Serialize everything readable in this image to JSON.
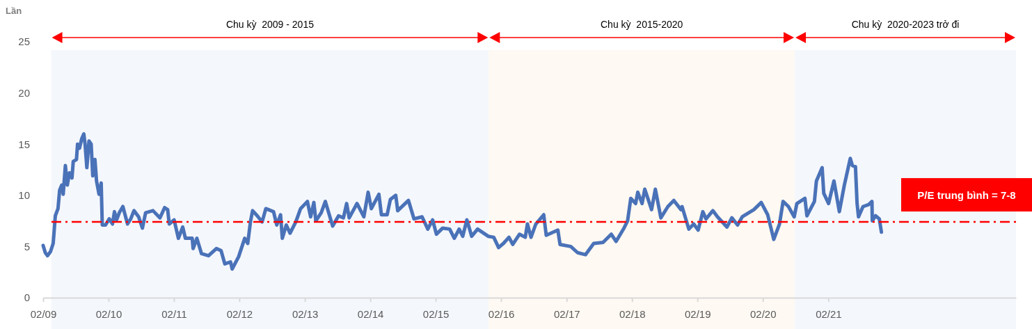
{
  "chart_data": {
    "type": "line",
    "ylabel": "Lần",
    "x": [
      "2009-02-01",
      "2009-02-13",
      "2009-02-25",
      "2009-03-14",
      "2009-03-29",
      "2009-04-10",
      "2009-04-25",
      "2009-05-04",
      "2009-05-16",
      "2009-05-24",
      "2009-06-05",
      "2009-06-16",
      "2009-06-28",
      "2009-07-12",
      "2009-07-19",
      "2009-08-06",
      "2009-08-12",
      "2009-08-23",
      "2009-09-04",
      "2009-09-16",
      "2009-09-23",
      "2009-10-03",
      "2009-10-15",
      "2009-10-27",
      "2009-11-05",
      "2009-11-17",
      "2009-11-26",
      "2009-12-10",
      "2009-12-22",
      "2009-12-28",
      "2010-01-15",
      "2010-02-05",
      "2010-02-23",
      "2010-03-06",
      "2010-03-18",
      "2010-04-02",
      "2010-04-22",
      "2010-05-18",
      "2010-06-05",
      "2010-06-23",
      "2010-07-19",
      "2010-08-09",
      "2010-08-27",
      "2010-10-07",
      "2010-11-15",
      "2010-12-11",
      "2010-12-28",
      "2011-01-06",
      "2011-02-02",
      "2011-02-26",
      "2011-03-22",
      "2011-04-06",
      "2011-05-14",
      "2011-05-19",
      "2011-06-09",
      "2011-07-05",
      "2011-08-13",
      "2011-09-26",
      "2011-10-22",
      "2011-11-12",
      "2011-12-14",
      "2011-12-23",
      "2012-01-28",
      "2012-03-02",
      "2012-03-19",
      "2012-04-03",
      "2012-04-15",
      "2012-05-11",
      "2012-06-07",
      "2012-06-28",
      "2012-08-10",
      "2012-08-28",
      "2012-09-18",
      "2012-09-28",
      "2012-10-20",
      "2012-11-10",
      "2012-12-12",
      "2013-01-08",
      "2013-02-15",
      "2013-03-05",
      "2013-03-23",
      "2013-04-03",
      "2013-05-03",
      "2013-05-26",
      "2013-07-06",
      "2013-08-08",
      "2013-09-04",
      "2013-09-22",
      "2013-10-06",
      "2013-11-19",
      "2013-12-27",
      "2014-01-20",
      "2014-02-07",
      "2014-03-21",
      "2014-04-04",
      "2014-05-06",
      "2014-05-24",
      "2014-06-23",
      "2014-07-04",
      "2014-09-02",
      "2014-10-03",
      "2014-11-17",
      "2014-12-19",
      "2015-01-15",
      "2015-02-05",
      "2015-03-12",
      "2015-04-20",
      "2015-05-16",
      "2015-06-12",
      "2015-07-02",
      "2015-07-25",
      "2015-08-21",
      "2015-09-23",
      "2015-11-21",
      "2015-12-22",
      "2016-01-18",
      "2016-02-14",
      "2016-03-16",
      "2016-04-06",
      "2016-05-14",
      "2016-06-15",
      "2016-06-27",
      "2016-07-17",
      "2016-08-13",
      "2016-09-26",
      "2016-10-10",
      "2016-11-18",
      "2016-12-14",
      "2016-12-26",
      "2017-02-24",
      "2017-04-03",
      "2017-05-17",
      "2017-07-02",
      "2017-08-23",
      "2017-10-08",
      "2017-11-04",
      "2017-12-18",
      "2018-01-07",
      "2018-01-25",
      "2018-02-21",
      "2018-03-05",
      "2018-03-29",
      "2018-04-13",
      "2018-05-21",
      "2018-06-11",
      "2018-07-12",
      "2018-08-20",
      "2018-09-22",
      "2018-11-01",
      "2018-11-07",
      "2018-12-15",
      "2019-01-11",
      "2019-02-05",
      "2019-03-03",
      "2019-03-21",
      "2019-04-28",
      "2019-05-24",
      "2019-07-16",
      "2019-08-12",
      "2019-09-13",
      "2019-10-09",
      "2019-12-13",
      "2020-01-23",
      "2020-02-28",
      "2020-04-02",
      "2020-05-04",
      "2020-05-24",
      "2020-06-23",
      "2020-07-25",
      "2020-08-09",
      "2020-09-23",
      "2020-10-04",
      "2020-11-15",
      "2020-11-26",
      "2020-12-28",
      "2021-01-06",
      "2021-02-02",
      "2021-03-04",
      "2021-04-03",
      "2021-05-01",
      "2021-06-03",
      "2021-06-15",
      "2021-07-02",
      "2021-07-11",
      "2021-07-19",
      "2021-08-13",
      "2021-09-14",
      "2021-10-02",
      "2021-10-04",
      "2021-10-22",
      "2021-11-12",
      "2021-11-24"
    ],
    "series": [
      {
        "color": "#4a72b8",
        "values": [
          5.1,
          4.4,
          4.1,
          4.5,
          5.3,
          8.0,
          8.7,
          10.5,
          11.0,
          10.1,
          12.9,
          11.0,
          12.2,
          11.7,
          13.3,
          13.5,
          15.0,
          14.6,
          15.5,
          16.0,
          15.0,
          12.7,
          15.3,
          15.0,
          11.9,
          13.5,
          11.4,
          10.1,
          11.2,
          7.1,
          7.1,
          7.7,
          7.2,
          8.4,
          7.6,
          8.3,
          8.9,
          7.2,
          7.7,
          8.5,
          7.9,
          6.8,
          8.3,
          8.5,
          7.8,
          8.8,
          8.6,
          7.2,
          7.6,
          5.8,
          6.9,
          5.8,
          5.8,
          4.8,
          5.8,
          4.3,
          4.1,
          4.8,
          4.6,
          3.3,
          3.5,
          2.8,
          4.0,
          5.8,
          5.3,
          7.4,
          8.5,
          8.0,
          7.4,
          8.7,
          8.4,
          7.1,
          8.1,
          5.8,
          7.1,
          6.3,
          7.4,
          8.7,
          9.4,
          7.9,
          9.3,
          7.5,
          8.3,
          9.4,
          7.0,
          8.0,
          7.8,
          9.2,
          7.8,
          9.2,
          7.9,
          10.3,
          8.7,
          10.1,
          8.1,
          8.1,
          9.6,
          10.0,
          8.5,
          9.5,
          7.7,
          7.9,
          6.7,
          7.6,
          6.2,
          6.8,
          6.7,
          5.8,
          6.7,
          6.0,
          7.6,
          6.0,
          6.7,
          6.0,
          5.9,
          4.9,
          5.3,
          5.9,
          5.2,
          6.2,
          5.9,
          7.2,
          5.9,
          7.2,
          8.1,
          6.1,
          6.4,
          6.6,
          5.2,
          5.0,
          4.4,
          4.2,
          5.3,
          5.4,
          6.2,
          5.5,
          6.8,
          7.5,
          9.7,
          9.2,
          10.3,
          9.2,
          10.6,
          8.6,
          10.6,
          7.8,
          8.9,
          9.5,
          8.6,
          8.9,
          6.7,
          7.2,
          6.6,
          8.4,
          7.7,
          8.5,
          7.9,
          6.9,
          7.8,
          7.1,
          7.9,
          8.6,
          9.3,
          8.1,
          5.7,
          7.2,
          9.4,
          8.9,
          7.9,
          9.2,
          9.7,
          8.0,
          9.4,
          11.4,
          12.7,
          10.2,
          9.2,
          11.4,
          8.4,
          11.0,
          13.6,
          12.9,
          12.8,
          9.2,
          7.9,
          8.9,
          9.1,
          9.4,
          7.5,
          8.0,
          7.7,
          6.4
        ]
      }
    ],
    "xlim": [
      "2009-02-01",
      "2023-12-15"
    ],
    "xticks": [
      {
        "value": "2009-02-01",
        "label": "02/09"
      },
      {
        "value": "2010-02-01",
        "label": "02/10"
      },
      {
        "value": "2011-02-01",
        "label": "02/11"
      },
      {
        "value": "2012-02-01",
        "label": "02/12"
      },
      {
        "value": "2013-02-01",
        "label": "02/13"
      },
      {
        "value": "2014-02-01",
        "label": "02/14"
      },
      {
        "value": "2015-02-01",
        "label": "02/15"
      },
      {
        "value": "2016-02-01",
        "label": "02/16"
      },
      {
        "value": "2017-02-01",
        "label": "02/17"
      },
      {
        "value": "2018-02-01",
        "label": "02/18"
      },
      {
        "value": "2019-02-01",
        "label": "02/19"
      },
      {
        "value": "2020-02-01",
        "label": "02/20"
      },
      {
        "value": "2021-02-01",
        "label": "02/21"
      }
    ],
    "ylim": [
      0,
      25
    ],
    "yticks": [
      0,
      5,
      10,
      15,
      20,
      25
    ],
    "marker": "none",
    "line_style": "solid",
    "ref_lines": [
      {
        "axis": "y",
        "value": 7.4,
        "label": "P/E trung bình = 7-8",
        "color": "#ff0000",
        "line_style": "dashed"
      }
    ],
    "bands": [
      {
        "axis": "x",
        "from": "2009-03-18",
        "to": "2015-11-24",
        "label": "Chu kỳ  2009 - 2015",
        "color": "#f4f7fc"
      },
      {
        "axis": "x",
        "from": "2015-11-24",
        "to": "2020-07-28",
        "label": "Chu kỳ  2015-2020",
        "color": "#fef9f2"
      },
      {
        "axis": "x",
        "from": "2020-07-28",
        "to": "2023-12-15",
        "label": "Chu kỳ  2020-2023 trở đi",
        "color": "#f4f7fc"
      }
    ]
  }
}
